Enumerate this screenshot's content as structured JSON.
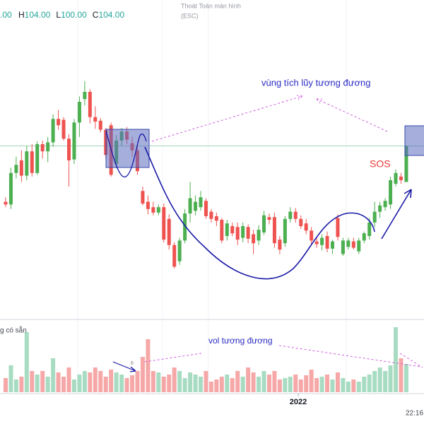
{
  "chart_data": {
    "type": "candlestick",
    "header": {
      "open_cut": ".00",
      "fields": [
        {
          "label": "H",
          "value": "104.00"
        },
        {
          "label": "L",
          "value": "100.00"
        },
        {
          "label": "C",
          "value": "104.00"
        }
      ]
    },
    "ui": {
      "exit_fullscreen": "Thoát Toàn màn hình",
      "esc": "(ESC)",
      "clock": "22:16",
      "volume_legend": "g có sẵn"
    },
    "annotations": {
      "zone": "vùng tích lũy tương đương",
      "sos": "SOS",
      "vol": "vol tương đương",
      "marker": "6"
    },
    "up_color": "#4caf50",
    "down_color": "#ef5350",
    "volume_up_color": "#a8dcc2",
    "volume_down_color": "#f6a8a8",
    "last_price_line_color": "#9fd6b8",
    "xlim": [
      -1.07,
      79.36
    ],
    "xticks": [
      {
        "value": 55.5,
        "label": "2022"
      }
    ],
    "ylim": [
      84.9,
      120.2
    ],
    "volume_lim": [
      0,
      100
    ],
    "open": [
      97.8,
      97.5,
      101.0,
      102.4,
      100.7,
      103.4,
      101.0,
      104.2,
      103.4,
      104.4,
      107.0,
      106.9,
      104.8,
      102.5,
      106.6,
      109.2,
      110.0,
      107.2,
      106.8,
      105.8,
      106.3,
      102.0,
      104.6,
      105.6,
      104.3,
      103.5,
      99.0,
      97.8,
      97.2,
      96.6,
      97.2,
      95.9,
      93.0,
      91.2,
      93.5,
      96.5,
      96.8,
      97.2,
      97.9,
      96.7,
      96.2,
      95.8,
      94.0,
      95.1,
      95.0,
      93.8,
      95.0,
      94.2,
      93.5,
      94.4,
      96.1,
      96.1,
      93.6,
      93.2,
      95.9,
      96.7,
      95.9,
      95.4,
      94.6,
      93.4,
      93.0,
      94.0,
      92.6,
      96.0,
      92.0,
      92.8,
      93.4,
      92.3,
      93.5,
      94.0,
      95.5,
      96.7,
      97.2,
      97.5,
      99.8,
      100.6,
      100.0
    ],
    "high": [
      98.3,
      101.6,
      102.8,
      103.5,
      104.0,
      104.2,
      104.5,
      104.6,
      105.0,
      107.5,
      108.0,
      107.2,
      105.3,
      107.0,
      109.5,
      111.2,
      110.3,
      108.4,
      107.1,
      106.0,
      106.6,
      105.2,
      106.0,
      106.1,
      105.0,
      104.0,
      99.5,
      98.5,
      97.8,
      97.5,
      97.6,
      96.4,
      93.3,
      93.8,
      97.0,
      100.0,
      98.5,
      99.0,
      98.2,
      97.0,
      96.6,
      96.0,
      95.8,
      95.5,
      95.5,
      95.5,
      95.3,
      94.7,
      95.2,
      96.8,
      96.5,
      96.6,
      94.0,
      96.2,
      97.2,
      97.1,
      96.3,
      95.9,
      95.0,
      93.8,
      94.2,
      94.5,
      93.6,
      96.4,
      93.8,
      93.8,
      93.8,
      93.8,
      94.5,
      96.0,
      97.8,
      97.8,
      98.2,
      100.6,
      101.4,
      101.0,
      104.0
    ],
    "low": [
      97.2,
      97.0,
      100.4,
      100.0,
      100.2,
      100.6,
      100.8,
      102.6,
      102.2,
      103.9,
      105.8,
      104.6,
      99.5,
      102.0,
      105.0,
      108.5,
      106.5,
      105.9,
      105.5,
      102.6,
      100.6,
      101.5,
      104.0,
      104.2,
      102.8,
      100.8,
      97.4,
      96.4,
      96.3,
      96.3,
      93.3,
      92.5,
      90.4,
      90.8,
      93.2,
      95.5,
      96.3,
      96.8,
      95.9,
      95.5,
      95.1,
      93.2,
      93.5,
      94.0,
      93.0,
      93.3,
      93.2,
      92.0,
      93.0,
      94.1,
      95.3,
      92.7,
      92.0,
      92.8,
      95.5,
      95.5,
      94.8,
      94.2,
      93.1,
      92.7,
      92.4,
      92.2,
      92.0,
      93.5,
      91.8,
      92.5,
      92.5,
      92.0,
      93.2,
      93.6,
      95.0,
      96.0,
      96.8,
      97.0,
      99.5,
      99.8,
      100.0
    ],
    "close": [
      97.5,
      101.0,
      101.9,
      100.7,
      103.4,
      101.0,
      104.2,
      103.4,
      104.4,
      107.0,
      106.3,
      104.8,
      102.4,
      106.6,
      108.9,
      110.0,
      107.2,
      106.7,
      105.8,
      103.0,
      100.8,
      104.6,
      105.6,
      104.7,
      103.5,
      101.2,
      97.6,
      97.0,
      96.6,
      97.2,
      93.6,
      93.0,
      90.6,
      93.5,
      96.5,
      98.2,
      97.8,
      98.3,
      96.2,
      95.9,
      95.7,
      93.5,
      95.4,
      94.3,
      93.6,
      95.1,
      93.7,
      93.2,
      94.7,
      96.3,
      95.8,
      93.2,
      92.5,
      95.9,
      96.7,
      95.9,
      95.1,
      94.6,
      93.5,
      93.1,
      93.8,
      92.6,
      93.4,
      93.9,
      93.5,
      93.5,
      92.7,
      93.5,
      94.3,
      95.5,
      96.7,
      97.4,
      97.9,
      100.2,
      101.0,
      100.2,
      104.0
    ],
    "volume": [
      20,
      38,
      18,
      22,
      85,
      30,
      25,
      30,
      22,
      48,
      28,
      22,
      35,
      18,
      25,
      30,
      28,
      35,
      30,
      22,
      32,
      28,
      25,
      20,
      24,
      30,
      50,
      75,
      30,
      28,
      22,
      25,
      35,
      30,
      20,
      28,
      25,
      22,
      30,
      15,
      18,
      22,
      25,
      20,
      30,
      22,
      35,
      28,
      22,
      30,
      25,
      30,
      18,
      20,
      22,
      25,
      18,
      24,
      32,
      20,
      22,
      25,
      18,
      28,
      20,
      15,
      18,
      15,
      22,
      25,
      30,
      35,
      30,
      38,
      92,
      48,
      40
    ]
  }
}
